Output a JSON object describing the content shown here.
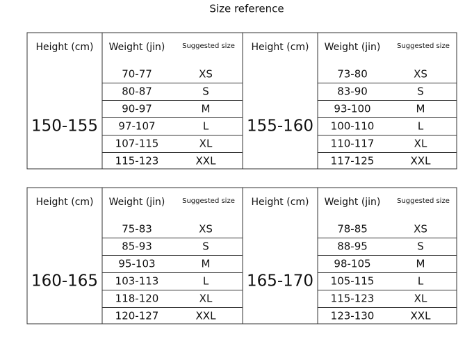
{
  "title": "Size reference",
  "blocks": [
    {
      "height_header": "Height (cm)",
      "weight_header": "Weight (jin)",
      "size_header": "Suggested size",
      "height": "150-155",
      "rows": [
        [
          "70-77",
          "XS"
        ],
        [
          "80-87",
          "S"
        ],
        [
          "90-97",
          "M"
        ],
        [
          "97-107",
          "L"
        ],
        [
          "107-115",
          "XL"
        ],
        [
          "115-123",
          "XXL"
        ]
      ]
    },
    {
      "height_header": "Height (cm)",
      "weight_header": "Weight (jin)",
      "size_header": "Suggested size",
      "height": "155-160",
      "rows": [
        [
          "73-80",
          "XS"
        ],
        [
          "83-90",
          "S"
        ],
        [
          "93-100",
          "M"
        ],
        [
          "100-110",
          "L"
        ],
        [
          "110-117",
          "XL"
        ],
        [
          "117-125",
          "XXL"
        ]
      ]
    },
    {
      "height_header": "Height (cm)",
      "weight_header": "Weight (jin)",
      "size_header": "Suggested size",
      "height": "160-165",
      "rows": [
        [
          "75-83",
          "XS"
        ],
        [
          "85-93",
          "S"
        ],
        [
          "95-103",
          "M"
        ],
        [
          "103-113",
          "L"
        ],
        [
          "118-120",
          "XL"
        ],
        [
          "120-127",
          "XXL"
        ]
      ]
    },
    {
      "height_header": "Height (cm)",
      "weight_header": "Weight (jin)",
      "size_header": "Suggested size",
      "height": "165-170",
      "rows": [
        [
          "78-85",
          "XS"
        ],
        [
          "88-95",
          "S"
        ],
        [
          "98-105",
          "M"
        ],
        [
          "105-115",
          "L"
        ],
        [
          "115-123",
          "XL"
        ],
        [
          "123-130",
          "XXL"
        ]
      ]
    }
  ]
}
